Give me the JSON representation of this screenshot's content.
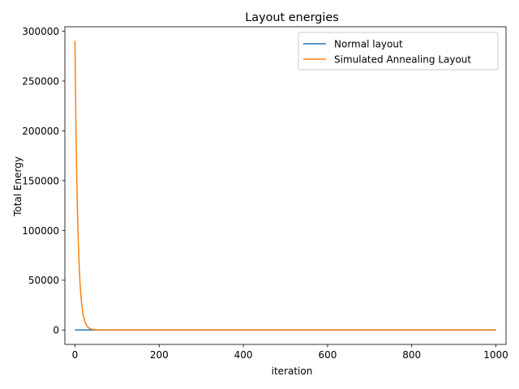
{
  "chart_data": {
    "type": "line",
    "title": "Layout energies",
    "xlabel": "iteration",
    "ylabel": "Total Energy",
    "xlim": [
      -24,
      1024
    ],
    "ylim": [
      -14500,
      304500
    ],
    "xticks": [
      0,
      200,
      400,
      600,
      800,
      1000
    ],
    "yticks": [
      0,
      50000,
      100000,
      150000,
      200000,
      250000,
      300000
    ],
    "grid": false,
    "legend_position": "top-right",
    "series": [
      {
        "name": "Normal layout",
        "color": "#1f77b4",
        "x": [
          0,
          10,
          20,
          50,
          100,
          200,
          400,
          600,
          800,
          1000
        ],
        "y": [
          0,
          0,
          0,
          0,
          0,
          0,
          0,
          0,
          0,
          0
        ]
      },
      {
        "name": "Simulated Annealing Layout",
        "color": "#ff7f0e",
        "x": [
          0,
          1,
          2,
          3,
          4,
          5,
          6,
          8,
          10,
          12,
          14,
          16,
          18,
          20,
          25,
          30,
          35,
          40,
          45,
          50,
          60,
          70,
          80,
          100,
          200,
          400,
          600,
          800,
          1000
        ],
        "y": [
          290000,
          249000,
          214000,
          184000,
          158000,
          136000,
          117000,
          86500,
          64000,
          47000,
          35000,
          26000,
          19000,
          14000,
          6600,
          3100,
          1450,
          700,
          320,
          150,
          30,
          0,
          0,
          0,
          0,
          0,
          0,
          0,
          0
        ]
      }
    ]
  }
}
